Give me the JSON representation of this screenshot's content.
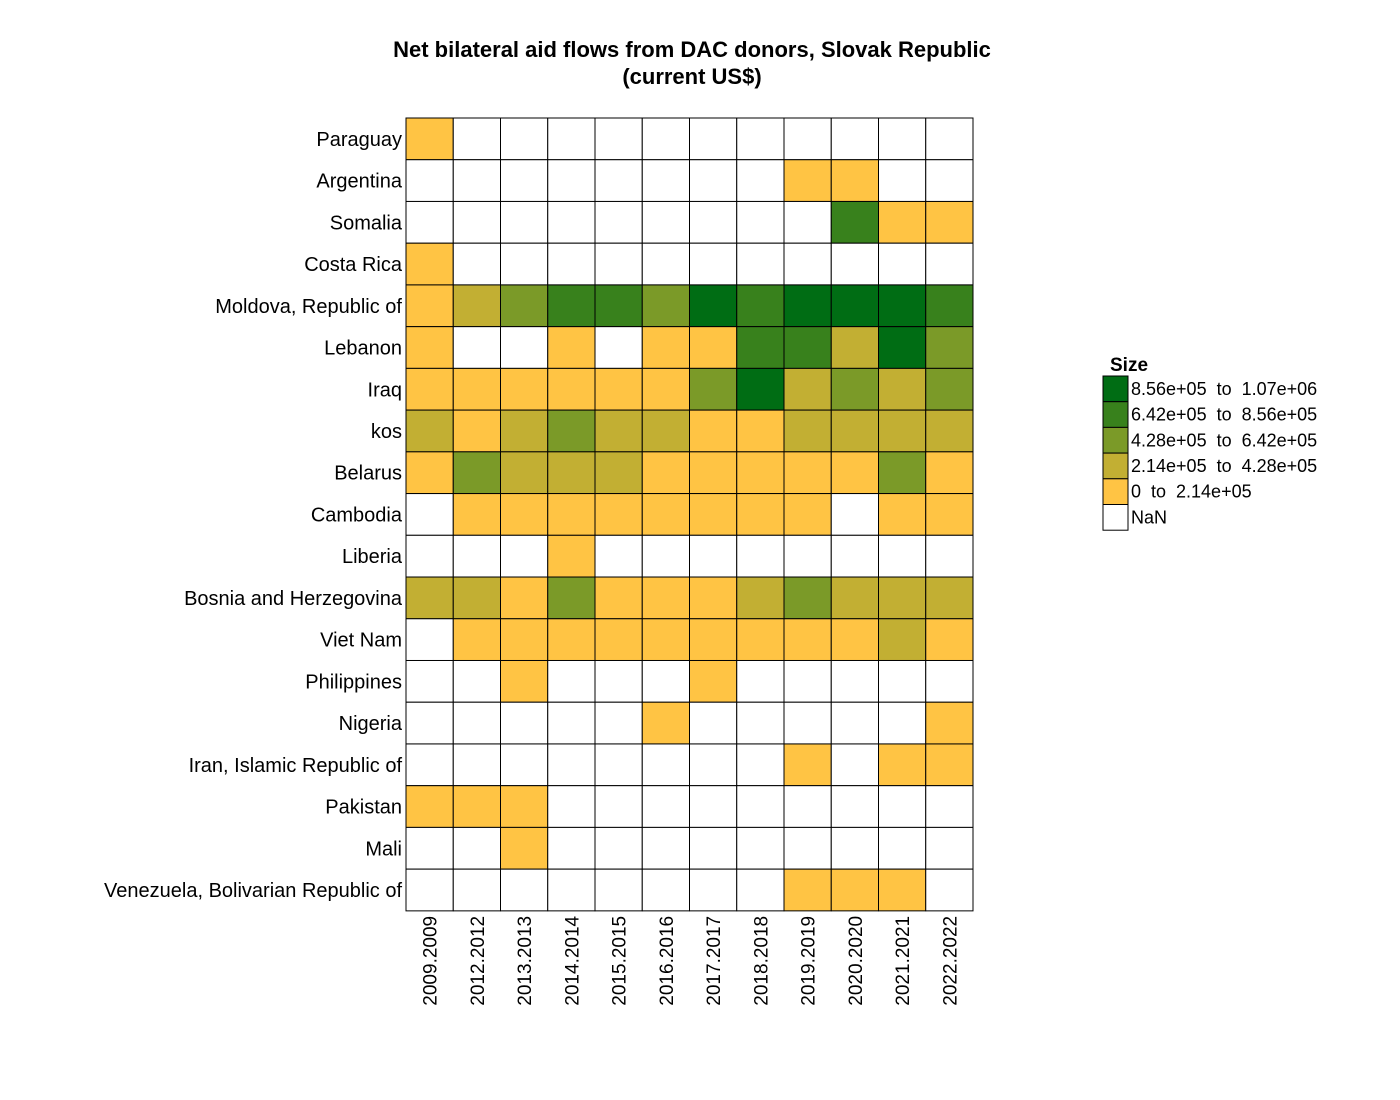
{
  "chart_data": {
    "type": "heatmap",
    "title_lines": [
      "Net bilateral aid flows from DAC donors, Slovak Republic",
      "(current US$)"
    ],
    "columns": [
      "2009.2009",
      "2012.2012",
      "2013.2013",
      "2014.2014",
      "2015.2015",
      "2016.2016",
      "2017.2017",
      "2018.2018",
      "2019.2019",
      "2020.2020",
      "2021.2021",
      "2022.2022"
    ],
    "rows": [
      "Paraguay",
      "Argentina",
      "Somalia",
      "Costa Rica",
      "Moldova, Republic of",
      "Lebanon",
      "Iraq",
      "kos",
      "Belarus",
      "Cambodia",
      "Liberia",
      "Bosnia and Herzegovina",
      "Viet Nam",
      "Philippines",
      "Nigeria",
      "Iran, Islamic Republic of",
      "Pakistan",
      "Mali",
      "Venezuela, Bolivarian Republic of"
    ],
    "bins": [
      {
        "label": "8.56e+05  to  1.07e+06",
        "color": "#006d14"
      },
      {
        "label": "6.42e+05  to  8.56e+05",
        "color": "#38811c"
      },
      {
        "label": "4.28e+05  to  6.42e+05",
        "color": "#7b9a28"
      },
      {
        "label": "2.14e+05  to  4.28e+05",
        "color": "#c2af33"
      },
      {
        "label": "0  to  2.14e+05",
        "color": "#ffc444"
      },
      {
        "label": "NaN",
        "color": "#ffffff"
      }
    ],
    "legend_title": "Size",
    "legend_position": "right",
    "bin_index_matrix": [
      [
        4,
        5,
        5,
        5,
        5,
        5,
        5,
        5,
        5,
        5,
        5,
        5
      ],
      [
        5,
        5,
        5,
        5,
        5,
        5,
        5,
        5,
        4,
        4,
        5,
        5
      ],
      [
        5,
        5,
        5,
        5,
        5,
        5,
        5,
        5,
        5,
        1,
        4,
        4
      ],
      [
        4,
        5,
        5,
        5,
        5,
        5,
        5,
        5,
        5,
        5,
        5,
        5
      ],
      [
        4,
        3,
        2,
        1,
        1,
        2,
        0,
        1,
        0,
        0,
        0,
        1
      ],
      [
        4,
        5,
        5,
        4,
        5,
        4,
        4,
        1,
        1,
        3,
        0,
        2
      ],
      [
        4,
        4,
        4,
        4,
        4,
        4,
        2,
        0,
        3,
        2,
        3,
        2
      ],
      [
        3,
        4,
        3,
        2,
        3,
        3,
        4,
        4,
        3,
        3,
        3,
        3
      ],
      [
        4,
        2,
        3,
        3,
        3,
        4,
        4,
        4,
        4,
        4,
        2,
        4
      ],
      [
        5,
        4,
        4,
        4,
        4,
        4,
        4,
        4,
        4,
        5,
        4,
        4
      ],
      [
        5,
        5,
        5,
        4,
        5,
        5,
        5,
        5,
        5,
        5,
        5,
        5
      ],
      [
        3,
        3,
        4,
        2,
        4,
        4,
        4,
        3,
        2,
        3,
        3,
        3
      ],
      [
        5,
        4,
        4,
        4,
        4,
        4,
        4,
        4,
        4,
        4,
        3,
        4
      ],
      [
        5,
        5,
        4,
        5,
        5,
        5,
        4,
        5,
        5,
        5,
        5,
        5
      ],
      [
        5,
        5,
        5,
        5,
        5,
        4,
        5,
        5,
        5,
        5,
        5,
        4
      ],
      [
        5,
        5,
        5,
        5,
        5,
        5,
        5,
        5,
        4,
        5,
        4,
        4
      ],
      [
        4,
        4,
        4,
        5,
        5,
        5,
        5,
        5,
        5,
        5,
        5,
        5
      ],
      [
        5,
        5,
        4,
        5,
        5,
        5,
        5,
        5,
        5,
        5,
        5,
        5
      ],
      [
        5,
        5,
        5,
        5,
        5,
        5,
        5,
        5,
        4,
        4,
        4,
        5
      ]
    ]
  }
}
